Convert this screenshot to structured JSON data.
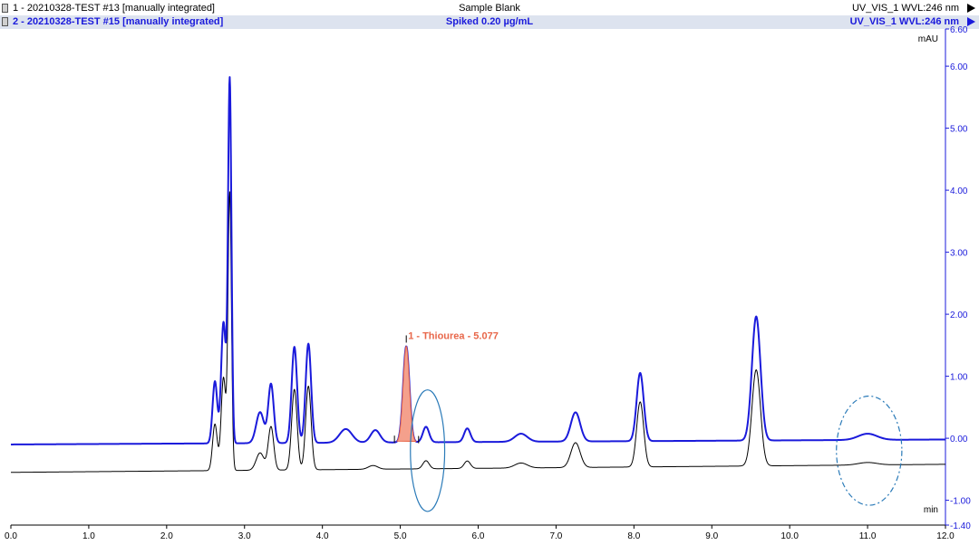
{
  "legend": [
    {
      "name": "1 - 20210328-TEST #13 [manually integrated]",
      "title": "Sample Blank",
      "wavelength": "UV_VIS_1 WVL:246 nm"
    },
    {
      "name": "2 - 20210328-TEST #15 [manually integrated]",
      "title": "Spiked 0.20 µg/mL",
      "wavelength": "UV_VIS_1 WVL:246 nm"
    }
  ],
  "colors": {
    "trace_blank": "#000000",
    "trace_spiked": "#1a1adb",
    "axis_right": "#1a1adb",
    "peak_fill": "#f4a08c",
    "peak_label": "#e8674a",
    "ellipse": "#2a7ab8"
  },
  "chart_data": {
    "type": "line",
    "xlabel": "min",
    "ylabel": "mAU",
    "xlim": [
      0.0,
      12.0
    ],
    "ylim": [
      -1.4,
      6.6
    ],
    "x_ticks": [
      "0.0",
      "1.0",
      "2.0",
      "3.0",
      "4.0",
      "5.0",
      "6.0",
      "7.0",
      "8.0",
      "9.0",
      "10.0",
      "11.0",
      "12.0"
    ],
    "y_ticks": [
      "6.60",
      "6.00",
      "5.00",
      "4.00",
      "3.00",
      "2.00",
      "1.00",
      "0.00",
      "-1.00",
      "-1.40"
    ],
    "series": [
      {
        "name": "1 - 20210328-TEST #13 [manually integrated]",
        "baseline": -0.42,
        "baseline_drift": 0.13,
        "peaks": [
          {
            "rt": 2.62,
            "height": 0.75,
            "width": 0.03
          },
          {
            "rt": 2.73,
            "height": 1.5,
            "width": 0.03
          },
          {
            "rt": 2.81,
            "height": 4.45,
            "width": 0.022
          },
          {
            "rt": 3.2,
            "height": 0.28,
            "width": 0.05
          },
          {
            "rt": 3.34,
            "height": 0.7,
            "width": 0.035
          },
          {
            "rt": 3.64,
            "height": 1.3,
            "width": 0.035
          },
          {
            "rt": 3.82,
            "height": 1.35,
            "width": 0.035
          },
          {
            "rt": 4.65,
            "height": 0.06,
            "width": 0.06
          },
          {
            "rt": 5.33,
            "height": 0.13,
            "width": 0.04
          },
          {
            "rt": 5.86,
            "height": 0.12,
            "width": 0.04
          },
          {
            "rt": 6.55,
            "height": 0.08,
            "width": 0.08
          },
          {
            "rt": 7.25,
            "height": 0.4,
            "width": 0.06
          },
          {
            "rt": 8.08,
            "height": 1.05,
            "width": 0.045
          },
          {
            "rt": 9.57,
            "height": 1.55,
            "width": 0.055
          },
          {
            "rt": 11.0,
            "height": 0.04,
            "width": 0.12
          }
        ]
      },
      {
        "name": "2 - 20210328-TEST #15 [manually integrated]",
        "baseline": -0.02,
        "baseline_drift": 0.08,
        "peaks": [
          {
            "rt": 2.62,
            "height": 1.0,
            "width": 0.03
          },
          {
            "rt": 2.73,
            "height": 1.95,
            "width": 0.03
          },
          {
            "rt": 2.81,
            "height": 5.85,
            "width": 0.022
          },
          {
            "rt": 3.2,
            "height": 0.5,
            "width": 0.05
          },
          {
            "rt": 3.34,
            "height": 0.95,
            "width": 0.035
          },
          {
            "rt": 3.64,
            "height": 1.55,
            "width": 0.035
          },
          {
            "rt": 3.82,
            "height": 1.6,
            "width": 0.035
          },
          {
            "rt": 4.3,
            "height": 0.22,
            "width": 0.08
          },
          {
            "rt": 4.68,
            "height": 0.2,
            "width": 0.06
          },
          {
            "rt": 5.077,
            "height": 1.55,
            "width": 0.04
          },
          {
            "rt": 5.33,
            "height": 0.25,
            "width": 0.04
          },
          {
            "rt": 5.86,
            "height": 0.22,
            "width": 0.04
          },
          {
            "rt": 6.55,
            "height": 0.13,
            "width": 0.08
          },
          {
            "rt": 7.25,
            "height": 0.47,
            "width": 0.06
          },
          {
            "rt": 8.08,
            "height": 1.1,
            "width": 0.045
          },
          {
            "rt": 9.57,
            "height": 2.0,
            "width": 0.055
          },
          {
            "rt": 11.0,
            "height": 0.1,
            "width": 0.12
          }
        ]
      }
    ],
    "integrated_peak": {
      "label": "1 - Thiourea - 5.077",
      "rt": 5.077,
      "start": 4.96,
      "end": 5.2,
      "series": 1
    },
    "annotations": [
      {
        "shape": "ellipse",
        "style": "solid",
        "cx": 5.35,
        "cy": -0.2,
        "rx": 0.22,
        "ry": 0.98
      },
      {
        "shape": "ellipse",
        "style": "dashdot",
        "cx": 11.02,
        "cy": -0.2,
        "rx": 0.42,
        "ry": 0.88
      }
    ]
  }
}
